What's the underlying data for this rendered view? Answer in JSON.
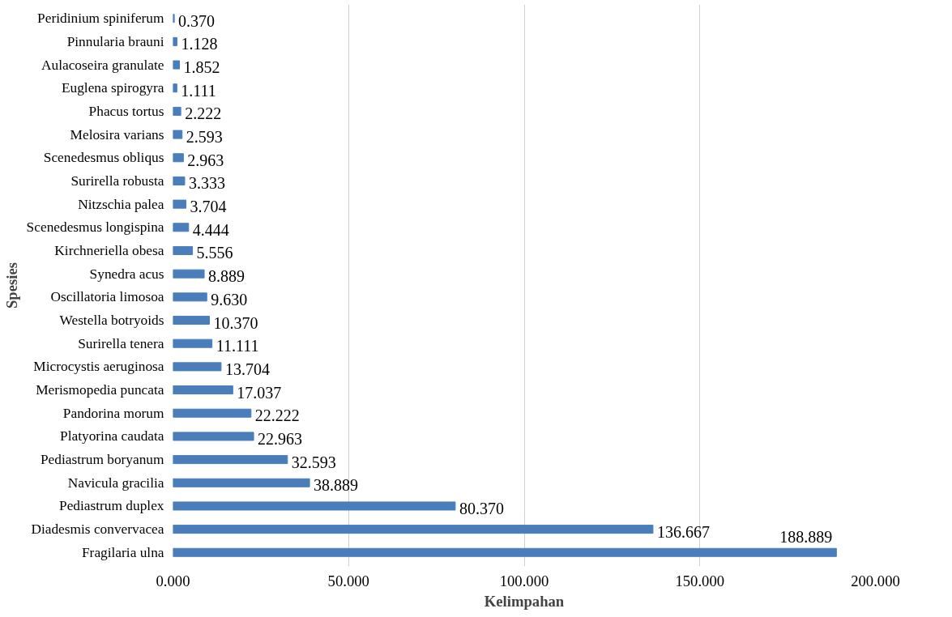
{
  "chart_data": {
    "type": "bar",
    "orientation": "horizontal",
    "xlabel": "Kelimpahan",
    "ylabel": "Spesies",
    "categories": [
      "Peridinium spiniferum",
      "Pinnularia brauni",
      "Aulacoseira granulate",
      "Euglena spirogyra",
      "Phacus tortus",
      "Melosira varians",
      "Scenedesmus obliqus",
      "Surirella robusta",
      "Nitzschia palea",
      "Scenedesmus longispina",
      "Kirchneriella obesa",
      "Synedra acus",
      "Oscillatoria limosoa",
      "Westella botryoids",
      "Surirella tenera",
      "Microcystis aeruginosa",
      "Merismopedia puncata",
      "Pandorina morum",
      "Platyorina caudata",
      "Pediastrum boryanum",
      "Navicula gracilia",
      "Pediastrum duplex",
      "Diadesmis convervacea",
      "Fragilaria ulna"
    ],
    "values": [
      0.37,
      1.128,
      1.852,
      1.111,
      2.222,
      2.593,
      2.963,
      3.333,
      3.704,
      4.444,
      5.556,
      8.889,
      9.63,
      10.37,
      11.111,
      13.704,
      17.037,
      22.222,
      22.963,
      32.593,
      38.889,
      80.37,
      136.667,
      188.889
    ],
    "value_labels": [
      "0.370",
      "1.128",
      "1.852",
      "1.111",
      "2.222",
      "2.593",
      "2.963",
      "3.333",
      "3.704",
      "4.444",
      "5.556",
      "8.889",
      "9.630",
      "10.370",
      "11.111",
      "13.704",
      "17.037",
      "22.222",
      "22.963",
      "32.593",
      "38.889",
      "80.370",
      "136.667",
      "188.889"
    ],
    "color": "#4a7ebb",
    "xlim": [
      0,
      200
    ],
    "xticks": [
      {
        "value": 0,
        "label": "0.000"
      },
      {
        "value": 50,
        "label": "50.000"
      },
      {
        "value": 100,
        "label": "100.000"
      },
      {
        "value": 150,
        "label": "150.000"
      },
      {
        "value": 200,
        "label": "200.000"
      }
    ],
    "grid": "x"
  }
}
